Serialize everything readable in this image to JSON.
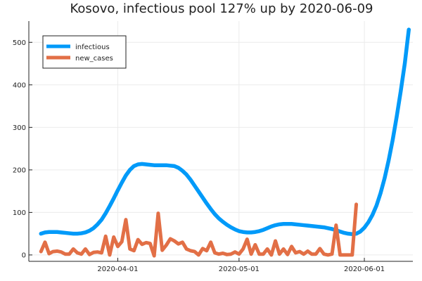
{
  "chart_data": {
    "type": "line",
    "title": "Kosovo, infectious pool 127% up by 2020-06-09",
    "xlabel": "",
    "ylabel": "",
    "x_start": "2020-03-13",
    "x_ticks": [
      {
        "date": "2020-04-01",
        "label": "2020-04-01"
      },
      {
        "date": "2020-05-01",
        "label": "2020-05-01"
      },
      {
        "date": "2020-06-01",
        "label": "2020-06-01"
      }
    ],
    "xlim": [
      "2020-03-10",
      "2020-06-13"
    ],
    "ylim": [
      -15,
      550
    ],
    "y_ticks": [
      0,
      100,
      200,
      300,
      400,
      500
    ],
    "grid": true,
    "legend_position": "top-left",
    "series": [
      {
        "name": "infectious",
        "color": "#009af9",
        "values": [
          50,
          53,
          54,
          54,
          54,
          53,
          52,
          51,
          50,
          50,
          51,
          53,
          57,
          63,
          72,
          83,
          98,
          115,
          133,
          152,
          170,
          187,
          200,
          209,
          213,
          214,
          213,
          212,
          211,
          211,
          211,
          211,
          210,
          209,
          205,
          198,
          189,
          177,
          163,
          149,
          135,
          121,
          108,
          96,
          86,
          78,
          71,
          65,
          60,
          56,
          54,
          53,
          53,
          54,
          56,
          59,
          63,
          67,
          70,
          72,
          73,
          73,
          73,
          72,
          71,
          70,
          69,
          68,
          67,
          66,
          65,
          63,
          61,
          58,
          55,
          52,
          50,
          49,
          50,
          55,
          64,
          77,
          94,
          116,
          145,
          180,
          222,
          270,
          325,
          385,
          450,
          530
        ]
      },
      {
        "name": "new_cases",
        "color": "#e26f46",
        "values": [
          8,
          30,
          3,
          8,
          9,
          7,
          2,
          2,
          14,
          5,
          2,
          14,
          1,
          6,
          7,
          5,
          44,
          0,
          42,
          20,
          31,
          83,
          14,
          10,
          36,
          25,
          29,
          27,
          -2,
          98,
          11,
          23,
          38,
          33,
          26,
          30,
          14,
          10,
          8,
          0,
          15,
          10,
          30,
          5,
          2,
          4,
          1,
          2,
          7,
          2,
          14,
          37,
          2,
          24,
          2,
          2,
          14,
          0,
          33,
          2,
          14,
          1,
          20,
          5,
          8,
          2,
          9,
          2,
          2,
          15,
          2,
          0,
          2,
          70,
          0,
          0,
          0,
          0,
          119
        ]
      }
    ]
  }
}
